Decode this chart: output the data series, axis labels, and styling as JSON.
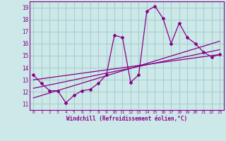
{
  "xlabel": "Windchill (Refroidissement éolien,°C)",
  "ylabel": "",
  "bg_color": "#cce8e8",
  "grid_color": "#aacece",
  "line_color": "#880088",
  "xlim": [
    -0.5,
    23.5
  ],
  "ylim": [
    10.5,
    19.5
  ],
  "xticks": [
    0,
    1,
    2,
    3,
    4,
    5,
    6,
    7,
    8,
    9,
    10,
    11,
    12,
    13,
    14,
    15,
    16,
    17,
    18,
    19,
    20,
    21,
    22,
    23
  ],
  "yticks": [
    11,
    12,
    13,
    14,
    15,
    16,
    17,
    18,
    19
  ],
  "main_x": [
    0,
    1,
    2,
    3,
    4,
    5,
    6,
    7,
    8,
    9,
    10,
    11,
    12,
    13,
    14,
    15,
    16,
    17,
    18,
    19,
    20,
    21,
    22,
    23
  ],
  "main_y": [
    13.4,
    12.7,
    12.1,
    12.1,
    11.1,
    11.7,
    12.1,
    12.2,
    12.7,
    13.4,
    16.7,
    16.5,
    12.8,
    13.4,
    18.7,
    19.1,
    18.1,
    16.0,
    17.7,
    16.5,
    16.0,
    15.3,
    14.9,
    15.1
  ],
  "line1_x": [
    0,
    23
  ],
  "line1_y": [
    13.0,
    15.1
  ],
  "line2_x": [
    0,
    23
  ],
  "line2_y": [
    12.3,
    15.5
  ],
  "line3_x": [
    0,
    23
  ],
  "line3_y": [
    11.5,
    16.2
  ]
}
